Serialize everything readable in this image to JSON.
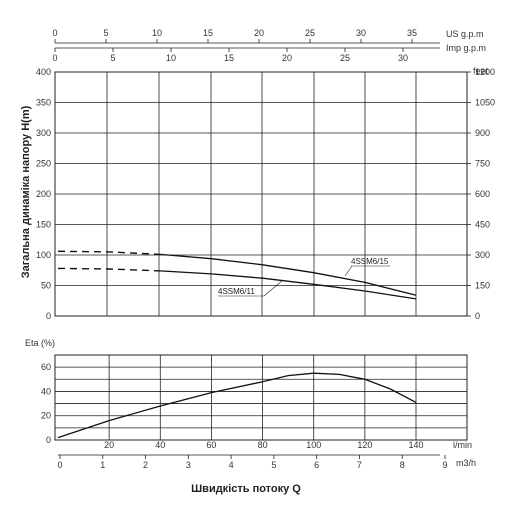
{
  "head_chart": {
    "y_title": "Загальна динаміка напору H(m)",
    "y_left_ticks": [
      "0",
      "50",
      "100",
      "150",
      "200",
      "250",
      "300",
      "350",
      "400"
    ],
    "y_right_unit": "feet",
    "y_right_ticks": [
      "0",
      "150",
      "300",
      "450",
      "600",
      "750",
      "900",
      "1050",
      "1200"
    ],
    "us_gpm_unit": "US g.p.m",
    "us_gpm_ticks": [
      "0",
      "5",
      "10",
      "15",
      "20",
      "25",
      "30",
      "35"
    ],
    "imp_gpm_unit": "Imp g.p.m",
    "imp_gpm_ticks": [
      "0",
      "5",
      "10",
      "15",
      "20",
      "25",
      "30"
    ]
  },
  "eta_chart": {
    "y_title": "Eta (%)",
    "y_ticks": [
      "0",
      "20",
      "40",
      "60"
    ],
    "lmin_unit": "l/min",
    "lmin_ticks": [
      "20",
      "40",
      "60",
      "80",
      "100",
      "120",
      "140"
    ],
    "m3h_unit": "m3/h",
    "m3h_ticks": [
      "0",
      "1",
      "2",
      "3",
      "4",
      "5",
      "6",
      "7",
      "8",
      "9"
    ]
  },
  "x_title": "Швидкість потоку Q",
  "chart_data": [
    {
      "type": "line",
      "title": "",
      "xlabel": "Швидкість потоку Q",
      "ylabel": "Загальна динаміка напору H(m)",
      "x_unit": "l/min",
      "xlim": [
        0,
        160
      ],
      "ylim": [
        0,
        400
      ],
      "y2_unit": "feet",
      "y2lim": [
        0,
        1200
      ],
      "grid": true,
      "series": [
        {
          "name": "4SSM6/15",
          "x": [
            0,
            20,
            40,
            60,
            80,
            100,
            120,
            140
          ],
          "y": [
            106,
            105,
            101,
            94,
            84,
            71,
            55,
            34
          ],
          "dashed_until_x": 40
        },
        {
          "name": "4SSM6/11",
          "x": [
            0,
            20,
            40,
            60,
            80,
            100,
            120,
            140
          ],
          "y": [
            78,
            77,
            74,
            69,
            62,
            52,
            41,
            28
          ],
          "dashed_until_x": 40
        }
      ]
    },
    {
      "type": "line",
      "title": "",
      "xlabel": "Швидкість потоку Q",
      "ylabel": "Eta (%)",
      "x_unit": "l/min",
      "xlim": [
        0,
        160
      ],
      "ylim": [
        0,
        70
      ],
      "grid": true,
      "series": [
        {
          "x": [
            0,
            20,
            40,
            60,
            80,
            90,
            100,
            110,
            120,
            130,
            140
          ],
          "y": [
            2,
            16,
            28,
            39,
            48,
            53,
            55,
            54,
            50,
            42,
            31
          ]
        }
      ]
    }
  ]
}
